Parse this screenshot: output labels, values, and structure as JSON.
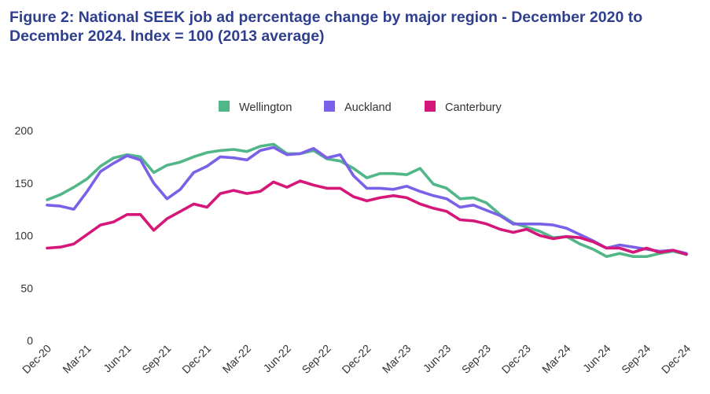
{
  "chart_data": {
    "type": "line",
    "title": "Figure 2: National SEEK job ad percentage change by major region - December 2020 to December 2024. Index = 100 (2013 average)",
    "xlabel": "",
    "ylabel": "",
    "ylim": [
      0,
      200
    ],
    "yticks": [
      "0",
      "50",
      "100",
      "150",
      "200"
    ],
    "xtick_labels": [
      "Dec-20",
      "Mar-21",
      "Jun-21",
      "Sep-21",
      "Dec-21",
      "Mar-22",
      "Jun-22",
      "Sep-22",
      "Dec-22",
      "Mar-23",
      "Jun-23",
      "Sep-23",
      "Dec-23",
      "Mar-24",
      "Jun-24",
      "Sep-24",
      "Dec-24"
    ],
    "x": [
      "Dec-20",
      "Jan-21",
      "Feb-21",
      "Mar-21",
      "Apr-21",
      "May-21",
      "Jun-21",
      "Jul-21",
      "Aug-21",
      "Sep-21",
      "Oct-21",
      "Nov-21",
      "Dec-21",
      "Jan-22",
      "Feb-22",
      "Mar-22",
      "Apr-22",
      "May-22",
      "Jun-22",
      "Jul-22",
      "Aug-22",
      "Sep-22",
      "Oct-22",
      "Nov-22",
      "Dec-22",
      "Jan-23",
      "Feb-23",
      "Mar-23",
      "Apr-23",
      "May-23",
      "Jun-23",
      "Jul-23",
      "Aug-23",
      "Sep-23",
      "Oct-23",
      "Nov-23",
      "Dec-23",
      "Jan-24",
      "Feb-24",
      "Mar-24",
      "Apr-24",
      "May-24",
      "Jun-24",
      "Jul-24",
      "Aug-24",
      "Sep-24",
      "Oct-24",
      "Nov-24",
      "Dec-24"
    ],
    "grid": false,
    "legend_position": "top-center",
    "series": [
      {
        "name": "Wellington",
        "color": "#52b788",
        "values": [
          134,
          139,
          146,
          154,
          166,
          174,
          177,
          175,
          160,
          167,
          170,
          175,
          179,
          181,
          182,
          180,
          185,
          187,
          178,
          178,
          181,
          173,
          171,
          164,
          155,
          159,
          159,
          158,
          164,
          149,
          145,
          135,
          136,
          131,
          120,
          112,
          108,
          104,
          98,
          99,
          92,
          87,
          80,
          83,
          80,
          80,
          83,
          85,
          82
        ]
      },
      {
        "name": "Auckland",
        "color": "#7b61e8",
        "values": [
          129,
          128,
          125,
          142,
          161,
          169,
          176,
          172,
          150,
          135,
          144,
          160,
          166,
          175,
          174,
          172,
          181,
          184,
          177,
          178,
          183,
          174,
          177,
          157,
          145,
          145,
          144,
          147,
          142,
          138,
          135,
          127,
          129,
          124,
          119,
          111,
          111,
          111,
          110,
          107,
          101,
          95,
          88,
          91,
          89,
          87,
          85,
          86,
          83
        ]
      },
      {
        "name": "Canterbury",
        "color": "#d6177a",
        "values": [
          88,
          89,
          92,
          101,
          110,
          113,
          120,
          120,
          105,
          116,
          123,
          130,
          127,
          140,
          143,
          140,
          142,
          151,
          146,
          152,
          148,
          145,
          145,
          137,
          133,
          136,
          138,
          136,
          130,
          126,
          123,
          115,
          114,
          111,
          106,
          103,
          106,
          100,
          97,
          99,
          98,
          94,
          88,
          88,
          84,
          88,
          84,
          86,
          82
        ]
      }
    ]
  }
}
